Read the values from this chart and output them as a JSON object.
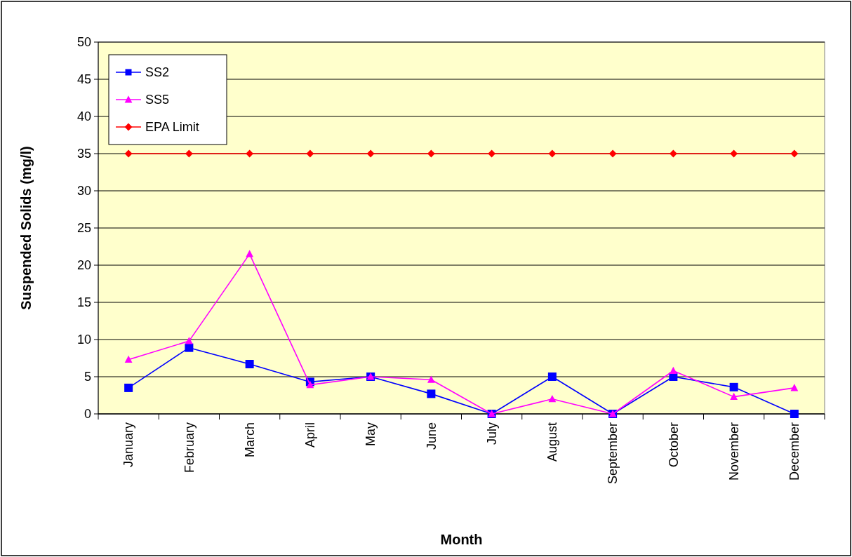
{
  "chart_data": {
    "type": "line",
    "xlabel": "Month",
    "ylabel": "Suspended Solids (mg/l)",
    "categories": [
      "January",
      "February",
      "March",
      "April",
      "May",
      "June",
      "July",
      "August",
      "September",
      "October",
      "November",
      "December"
    ],
    "series": [
      {
        "name": "SS2",
        "color": "#0000ff",
        "marker": "square",
        "values": [
          3.5,
          8.9,
          6.7,
          4.3,
          5.0,
          2.7,
          0,
          5.0,
          0,
          5.0,
          3.6,
          0
        ]
      },
      {
        "name": "SS5",
        "color": "#ff00ff",
        "marker": "triangle",
        "values": [
          7.3,
          9.8,
          21.5,
          3.9,
          5.0,
          4.6,
          0,
          2.0,
          0,
          5.8,
          2.3,
          3.5
        ]
      },
      {
        "name": "EPA Limit",
        "color": "#ff0000",
        "marker": "diamond",
        "values": [
          35,
          35,
          35,
          35,
          35,
          35,
          35,
          35,
          35,
          35,
          35,
          35
        ]
      }
    ],
    "ylim": [
      0,
      50
    ],
    "yticks": [
      0,
      5,
      10,
      15,
      20,
      25,
      30,
      35,
      40,
      45,
      50
    ],
    "grid": "y",
    "legend": "top left"
  }
}
